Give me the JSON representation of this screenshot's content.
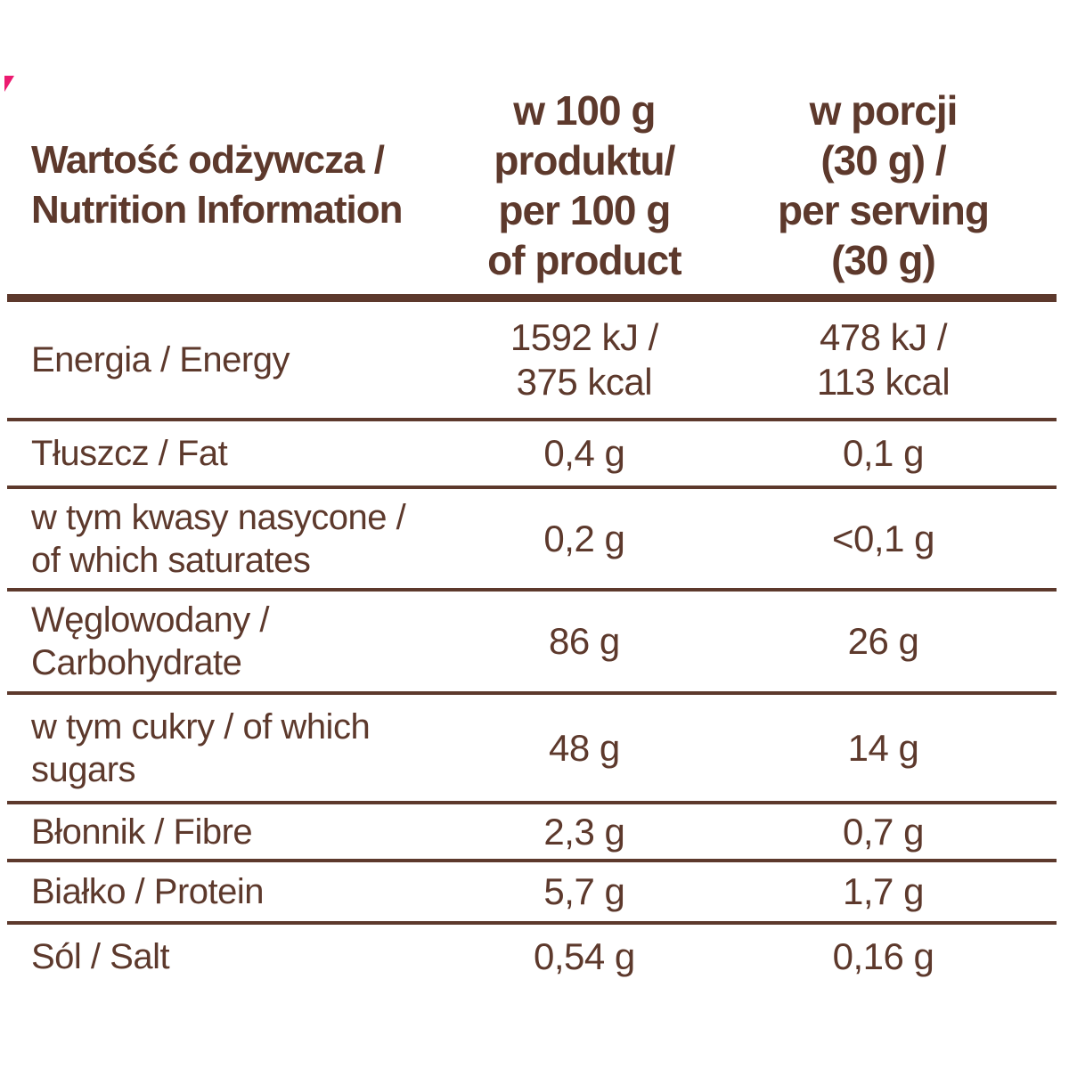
{
  "colors": {
    "text_brown": "#5d392c",
    "accent_pink": "#ec1a70",
    "background": "#ffffff"
  },
  "header": {
    "col1": "Wartość odżywcza /\nNutrition Information",
    "col2": "w 100 g\nproduktu/\nper 100 g\nof product",
    "col3": "w porcji\n(30 g) /\nper serving\n(30 g)"
  },
  "rows": [
    {
      "label": "Energia / Energy",
      "per100": "1592 kJ /\n375 kcal",
      "serving": "478 kJ /\n113 kcal"
    },
    {
      "label": "Tłuszcz / Fat",
      "per100": "0,4 g",
      "serving": "0,1 g"
    },
    {
      "label": "w tym kwasy nasycone /\nof which saturates",
      "per100": "0,2 g",
      "serving": "<0,1 g"
    },
    {
      "label": "Węglowodany /\nCarbohydrate",
      "per100": "86 g",
      "serving": "26 g"
    },
    {
      "label": "w tym cukry / of which\nsugars",
      "per100": "48 g",
      "serving": "14 g"
    },
    {
      "label": "Błonnik / Fibre",
      "per100": "2,3 g",
      "serving": "0,7 g"
    },
    {
      "label": "Białko / Protein",
      "per100": "5,7 g",
      "serving": "1,7 g"
    },
    {
      "label": "Sól / Salt",
      "per100": "0,54 g",
      "serving": "0,16 g"
    }
  ]
}
